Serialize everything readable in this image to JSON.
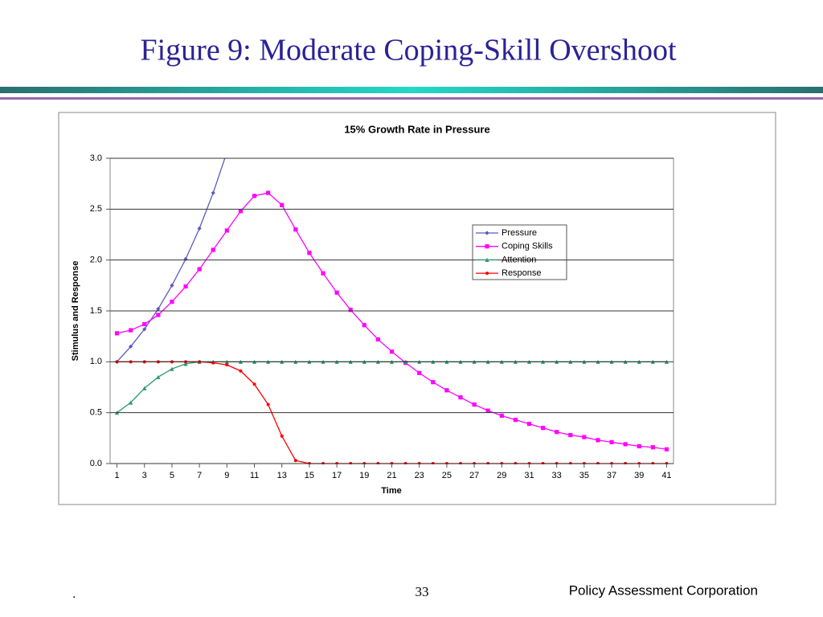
{
  "slide": {
    "title": "Figure 9:  Moderate Coping-Skill Overshoot",
    "footer_left": ".",
    "page_number": "33",
    "organization": "Policy Assessment Corporation"
  },
  "chart_data": {
    "type": "line",
    "title": "15% Growth Rate  in Pressure",
    "x_label": "Time",
    "y_label": "Stimulus and Response",
    "x": [
      1,
      2,
      3,
      4,
      5,
      6,
      7,
      8,
      9,
      10,
      11,
      12,
      13,
      14,
      15,
      16,
      17,
      18,
      19,
      20,
      21,
      22,
      23,
      24,
      25,
      26,
      27,
      28,
      29,
      30,
      31,
      32,
      33,
      34,
      35,
      36,
      37,
      38,
      39,
      40,
      41
    ],
    "xlim": [
      0.5,
      41.5
    ],
    "xticks": [
      1,
      3,
      5,
      7,
      9,
      11,
      13,
      15,
      17,
      19,
      21,
      23,
      25,
      27,
      29,
      31,
      33,
      35,
      37,
      39,
      41
    ],
    "ylim": [
      0,
      3
    ],
    "yticks": [
      {
        "value": 0,
        "label": "0.0"
      },
      {
        "value": 0.5,
        "label": "0.5"
      },
      {
        "value": 1,
        "label": "1.0"
      },
      {
        "value": 1.5,
        "label": "1.5"
      },
      {
        "value": 2,
        "label": "2.0"
      },
      {
        "value": 2.5,
        "label": "2.5"
      },
      {
        "value": 3,
        "label": "3.0"
      }
    ],
    "grid": true,
    "legend": "right",
    "series": [
      {
        "name": "Pressure",
        "color": "#5a5ac0",
        "marker": "diamond",
        "values": [
          1.0,
          1.15,
          1.32,
          1.52,
          1.75,
          2.01,
          2.31,
          2.66,
          3.06,
          null,
          null,
          null,
          null,
          null,
          null,
          null,
          null,
          null,
          null,
          null,
          null,
          null,
          null,
          null,
          null,
          null,
          null,
          null,
          null,
          null,
          null,
          null,
          null,
          null,
          null,
          null,
          null,
          null,
          null,
          null,
          null
        ]
      },
      {
        "name": "Coping Skills",
        "color": "#ff00ff",
        "marker": "square",
        "values": [
          1.28,
          1.31,
          1.37,
          1.46,
          1.59,
          1.74,
          1.91,
          2.1,
          2.29,
          2.48,
          2.63,
          2.66,
          2.54,
          2.3,
          2.07,
          1.87,
          1.68,
          1.51,
          1.36,
          1.22,
          1.1,
          0.99,
          0.89,
          0.8,
          0.72,
          0.65,
          0.58,
          0.52,
          0.47,
          0.43,
          0.39,
          0.35,
          0.31,
          0.28,
          0.26,
          0.23,
          0.21,
          0.19,
          0.17,
          0.16,
          0.14
        ]
      },
      {
        "name": "Attention",
        "color": "#2e9a6a",
        "marker": "triangle",
        "values": [
          0.5,
          0.6,
          0.74,
          0.85,
          0.93,
          0.98,
          1.0,
          1.0,
          1.0,
          1.0,
          1.0,
          1.0,
          1.0,
          1.0,
          1.0,
          1.0,
          1.0,
          1.0,
          1.0,
          1.0,
          1.0,
          1.0,
          1.0,
          1.0,
          1.0,
          1.0,
          1.0,
          1.0,
          1.0,
          1.0,
          1.0,
          1.0,
          1.0,
          1.0,
          1.0,
          1.0,
          1.0,
          1.0,
          1.0,
          1.0,
          1.0
        ]
      },
      {
        "name": "Response",
        "color": "#ff0000",
        "marker": "circle",
        "values": [
          1.0,
          1.0,
          1.0,
          1.0,
          1.0,
          1.0,
          1.0,
          0.99,
          0.97,
          0.91,
          0.78,
          0.58,
          0.27,
          0.03,
          0,
          0,
          0,
          0,
          0,
          0,
          0,
          0,
          0,
          0,
          0,
          0,
          0,
          0,
          0,
          0,
          0,
          0,
          0,
          0,
          0,
          0,
          0,
          0,
          0,
          0,
          0
        ]
      }
    ]
  }
}
